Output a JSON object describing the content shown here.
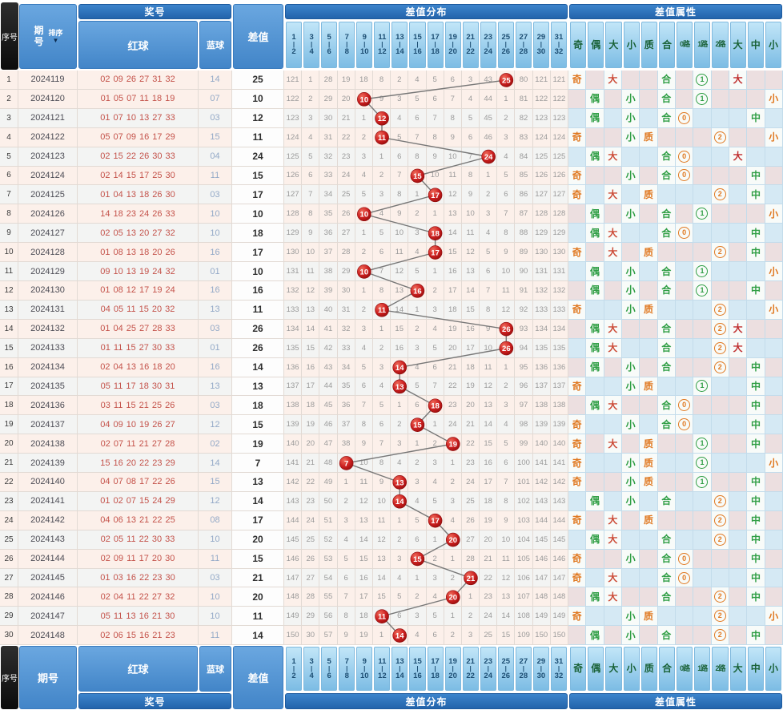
{
  "labels": {
    "xu_hao": "序号",
    "qi_hao": "期号",
    "pai_xu": "排序",
    "jiang_hao": "奖号",
    "hong_qiu": "红球",
    "lan_qiu": "蓝球",
    "cha_zhi": "差值",
    "cha_zhi_fen_bu": "差值分布",
    "cha_zhi_shu_xing": "差值属性"
  },
  "distribution_columns": [
    [
      "1",
      "2"
    ],
    [
      "3",
      "4"
    ],
    [
      "5",
      "6"
    ],
    [
      "7",
      "8"
    ],
    [
      "9",
      "10"
    ],
    [
      "11",
      "12"
    ],
    [
      "13",
      "14"
    ],
    [
      "15",
      "16"
    ],
    [
      "17",
      "18"
    ],
    [
      "19",
      "20"
    ],
    [
      "21",
      "22"
    ],
    [
      "23",
      "24"
    ],
    [
      "25",
      "26"
    ],
    [
      "27",
      "28"
    ],
    [
      "29",
      "30"
    ],
    [
      "31",
      "32"
    ]
  ],
  "attribute_columns": [
    "奇",
    "偶",
    "大",
    "小",
    "质",
    "合",
    "0路",
    "1路",
    "2路",
    "大",
    "中",
    "小"
  ],
  "colors": {
    "header_blue": "#4285c8",
    "group_bar_blue": "#2364ab",
    "column_cell_blue": "#9dd0ee",
    "hit_ball_red": "#c01818",
    "trend_line_gray": "#777777",
    "red_ball_text": "#c4524a",
    "blue_ball_text": "#93a9c7",
    "row_pink": "#fcf0ea",
    "row_light": "#f3f4f3",
    "attr": [
      "#e07820",
      "#2f9e44",
      "#cc4b37",
      "#2f9e44",
      "#e07820",
      "#2f9e44",
      "#e07820",
      "#2f9e44",
      "#e07820",
      "#c03030",
      "#2f9e44",
      "#e07820"
    ]
  },
  "chart_data": {
    "type": "table",
    "title": "差值分布走势",
    "x_buckets": [
      "1-2",
      "3-4",
      "5-6",
      "7-8",
      "9-10",
      "11-12",
      "13-14",
      "15-16",
      "17-18",
      "19-20",
      "21-22",
      "23-24",
      "25-26",
      "27-28",
      "29-30",
      "31-32"
    ],
    "rows": [
      {
        "no": 1,
        "period": "2024119",
        "reds": [
          "02",
          "09",
          "26",
          "27",
          "31",
          "32"
        ],
        "blue": "14",
        "diff": 25,
        "hit": 12,
        "miss": [
          121,
          1,
          28,
          19,
          18,
          8,
          2,
          4,
          5,
          6,
          3,
          43,
          25,
          80,
          121,
          121
        ],
        "marks": [
          0,
          2,
          5,
          7,
          9
        ]
      },
      {
        "no": 2,
        "period": "2024120",
        "reds": [
          "01",
          "05",
          "07",
          "11",
          "18",
          "19"
        ],
        "blue": "07",
        "diff": 10,
        "hit": 4,
        "miss": [
          122,
          2,
          29,
          20,
          10,
          9,
          3,
          5,
          6,
          7,
          4,
          44,
          1,
          81,
          122,
          122
        ],
        "marks": [
          1,
          3,
          5,
          7,
          11
        ]
      },
      {
        "no": 3,
        "period": "2024121",
        "reds": [
          "01",
          "07",
          "10",
          "13",
          "27",
          "33"
        ],
        "blue": "03",
        "diff": 12,
        "hit": 5,
        "miss": [
          123,
          3,
          30,
          21,
          1,
          12,
          4,
          6,
          7,
          8,
          5,
          45,
          2,
          82,
          123,
          123
        ],
        "marks": [
          1,
          3,
          5,
          6,
          10
        ]
      },
      {
        "no": 4,
        "period": "2024122",
        "reds": [
          "05",
          "07",
          "09",
          "16",
          "17",
          "29"
        ],
        "blue": "15",
        "diff": 11,
        "hit": 5,
        "miss": [
          124,
          4,
          31,
          22,
          2,
          11,
          5,
          7,
          8,
          9,
          6,
          46,
          3,
          83,
          124,
          124
        ],
        "marks": [
          0,
          3,
          4,
          8,
          11
        ]
      },
      {
        "no": 5,
        "period": "2024123",
        "reds": [
          "02",
          "15",
          "22",
          "26",
          "30",
          "33"
        ],
        "blue": "04",
        "diff": 24,
        "hit": 11,
        "miss": [
          125,
          5,
          32,
          23,
          3,
          1,
          6,
          8,
          9,
          10,
          7,
          24,
          4,
          84,
          125,
          125
        ],
        "marks": [
          1,
          2,
          5,
          6,
          9
        ]
      },
      {
        "no": 6,
        "period": "2024124",
        "reds": [
          "02",
          "14",
          "15",
          "17",
          "25",
          "30"
        ],
        "blue": "11",
        "diff": 15,
        "hit": 7,
        "miss": [
          126,
          6,
          33,
          24,
          4,
          2,
          7,
          15,
          10,
          11,
          8,
          1,
          5,
          85,
          126,
          126
        ],
        "marks": [
          0,
          3,
          5,
          6,
          10
        ]
      },
      {
        "no": 7,
        "period": "2024125",
        "reds": [
          "01",
          "04",
          "13",
          "18",
          "26",
          "30"
        ],
        "blue": "03",
        "diff": 17,
        "hit": 8,
        "miss": [
          127,
          7,
          34,
          25,
          5,
          3,
          8,
          1,
          17,
          12,
          9,
          2,
          6,
          86,
          127,
          127
        ],
        "marks": [
          0,
          2,
          4,
          8,
          10
        ]
      },
      {
        "no": 8,
        "period": "2024126",
        "reds": [
          "14",
          "18",
          "23",
          "24",
          "26",
          "33"
        ],
        "blue": "10",
        "diff": 10,
        "hit": 4,
        "miss": [
          128,
          8,
          35,
          26,
          10,
          4,
          9,
          2,
          1,
          13,
          10,
          3,
          7,
          87,
          128,
          128
        ],
        "marks": [
          1,
          3,
          5,
          7,
          11
        ]
      },
      {
        "no": 9,
        "period": "2024127",
        "reds": [
          "02",
          "05",
          "13",
          "20",
          "27",
          "32"
        ],
        "blue": "10",
        "diff": 18,
        "hit": 8,
        "miss": [
          129,
          9,
          36,
          27,
          1,
          5,
          10,
          3,
          18,
          14,
          11,
          4,
          8,
          88,
          129,
          129
        ],
        "marks": [
          1,
          2,
          5,
          6,
          10
        ]
      },
      {
        "no": 10,
        "period": "2024128",
        "reds": [
          "01",
          "08",
          "13",
          "18",
          "20",
          "26"
        ],
        "blue": "16",
        "diff": 17,
        "hit": 8,
        "miss": [
          130,
          10,
          37,
          28,
          2,
          6,
          11,
          4,
          17,
          15,
          12,
          5,
          9,
          89,
          130,
          130
        ],
        "marks": [
          0,
          2,
          4,
          8,
          10
        ]
      },
      {
        "no": 11,
        "period": "2024129",
        "reds": [
          "09",
          "10",
          "13",
          "19",
          "24",
          "32"
        ],
        "blue": "01",
        "diff": 10,
        "hit": 4,
        "miss": [
          131,
          11,
          38,
          29,
          10,
          7,
          12,
          5,
          1,
          16,
          13,
          6,
          10,
          90,
          131,
          131
        ],
        "marks": [
          1,
          3,
          5,
          7,
          11
        ]
      },
      {
        "no": 12,
        "period": "2024130",
        "reds": [
          "01",
          "08",
          "12",
          "17",
          "19",
          "24"
        ],
        "blue": "16",
        "diff": 16,
        "hit": 7,
        "miss": [
          132,
          12,
          39,
          30,
          1,
          8,
          13,
          16,
          2,
          17,
          14,
          7,
          11,
          91,
          132,
          132
        ],
        "marks": [
          1,
          3,
          5,
          7,
          10
        ]
      },
      {
        "no": 13,
        "period": "2024131",
        "reds": [
          "04",
          "05",
          "11",
          "15",
          "20",
          "32"
        ],
        "blue": "13",
        "diff": 11,
        "hit": 5,
        "miss": [
          133,
          13,
          40,
          31,
          2,
          11,
          14,
          1,
          3,
          18,
          15,
          8,
          12,
          92,
          133,
          133
        ],
        "marks": [
          0,
          3,
          4,
          8,
          11
        ]
      },
      {
        "no": 14,
        "period": "2024132",
        "reds": [
          "01",
          "04",
          "25",
          "27",
          "28",
          "33"
        ],
        "blue": "03",
        "diff": 26,
        "hit": 12,
        "miss": [
          134,
          14,
          41,
          32,
          3,
          1,
          15,
          2,
          4,
          19,
          16,
          9,
          26,
          93,
          134,
          134
        ],
        "marks": [
          1,
          2,
          5,
          8,
          9
        ]
      },
      {
        "no": 15,
        "period": "2024133",
        "reds": [
          "01",
          "11",
          "15",
          "27",
          "30",
          "33"
        ],
        "blue": "01",
        "diff": 26,
        "hit": 12,
        "miss": [
          135,
          15,
          42,
          33,
          4,
          2,
          16,
          3,
          5,
          20,
          17,
          10,
          26,
          94,
          135,
          135
        ],
        "marks": [
          1,
          2,
          5,
          8,
          9
        ]
      },
      {
        "no": 16,
        "period": "2024134",
        "reds": [
          "02",
          "04",
          "13",
          "16",
          "18",
          "20"
        ],
        "blue": "16",
        "diff": 14,
        "hit": 6,
        "miss": [
          136,
          16,
          43,
          34,
          5,
          3,
          14,
          4,
          6,
          21,
          18,
          11,
          1,
          95,
          136,
          136
        ],
        "marks": [
          1,
          3,
          5,
          8,
          10
        ]
      },
      {
        "no": 17,
        "period": "2024135",
        "reds": [
          "05",
          "11",
          "17",
          "18",
          "30",
          "31"
        ],
        "blue": "13",
        "diff": 13,
        "hit": 6,
        "miss": [
          137,
          17,
          44,
          35,
          6,
          4,
          13,
          5,
          7,
          22,
          19,
          12,
          2,
          96,
          137,
          137
        ],
        "marks": [
          0,
          3,
          4,
          7,
          10
        ]
      },
      {
        "no": 18,
        "period": "2024136",
        "reds": [
          "03",
          "11",
          "15",
          "21",
          "25",
          "26"
        ],
        "blue": "03",
        "diff": 18,
        "hit": 8,
        "miss": [
          138,
          18,
          45,
          36,
          7,
          5,
          1,
          6,
          18,
          23,
          20,
          13,
          3,
          97,
          138,
          138
        ],
        "marks": [
          1,
          2,
          5,
          6,
          10
        ]
      },
      {
        "no": 19,
        "period": "2024137",
        "reds": [
          "04",
          "09",
          "10",
          "19",
          "26",
          "27"
        ],
        "blue": "12",
        "diff": 15,
        "hit": 7,
        "miss": [
          139,
          19,
          46,
          37,
          8,
          6,
          2,
          15,
          1,
          24,
          21,
          14,
          4,
          98,
          139,
          139
        ],
        "marks": [
          0,
          3,
          5,
          6,
          10
        ]
      },
      {
        "no": 20,
        "period": "2024138",
        "reds": [
          "02",
          "07",
          "11",
          "21",
          "27",
          "28"
        ],
        "blue": "02",
        "diff": 19,
        "hit": 9,
        "miss": [
          140,
          20,
          47,
          38,
          9,
          7,
          3,
          1,
          2,
          19,
          22,
          15,
          5,
          99,
          140,
          140
        ],
        "marks": [
          0,
          2,
          4,
          7,
          10
        ]
      },
      {
        "no": 21,
        "period": "2024139",
        "reds": [
          "15",
          "16",
          "20",
          "22",
          "23",
          "29"
        ],
        "blue": "14",
        "diff": 7,
        "hit": 3,
        "miss": [
          141,
          21,
          48,
          7,
          10,
          8,
          4,
          2,
          3,
          1,
          23,
          16,
          6,
          100,
          141,
          141
        ],
        "marks": [
          0,
          3,
          4,
          7,
          11
        ]
      },
      {
        "no": 22,
        "period": "2024140",
        "reds": [
          "04",
          "07",
          "08",
          "17",
          "22",
          "26"
        ],
        "blue": "15",
        "diff": 13,
        "hit": 6,
        "miss": [
          142,
          22,
          49,
          1,
          11,
          9,
          13,
          3,
          4,
          2,
          24,
          17,
          7,
          101,
          142,
          142
        ],
        "marks": [
          0,
          3,
          4,
          7,
          10
        ]
      },
      {
        "no": 23,
        "period": "2024141",
        "reds": [
          "01",
          "02",
          "07",
          "15",
          "24",
          "29"
        ],
        "blue": "12",
        "diff": 14,
        "hit": 6,
        "miss": [
          143,
          23,
          50,
          2,
          12,
          10,
          14,
          4,
          5,
          3,
          25,
          18,
          8,
          102,
          143,
          143
        ],
        "marks": [
          1,
          3,
          5,
          8,
          10
        ]
      },
      {
        "no": 24,
        "period": "2024142",
        "reds": [
          "04",
          "06",
          "13",
          "21",
          "22",
          "25"
        ],
        "blue": "08",
        "diff": 17,
        "hit": 8,
        "miss": [
          144,
          24,
          51,
          3,
          13,
          11,
          1,
          5,
          17,
          4,
          26,
          19,
          9,
          103,
          144,
          144
        ],
        "marks": [
          0,
          2,
          4,
          8,
          10
        ]
      },
      {
        "no": 25,
        "period": "2024143",
        "reds": [
          "02",
          "05",
          "11",
          "22",
          "30",
          "33"
        ],
        "blue": "10",
        "diff": 20,
        "hit": 9,
        "miss": [
          145,
          25,
          52,
          4,
          14,
          12,
          2,
          6,
          1,
          20,
          27,
          20,
          10,
          104,
          145,
          145
        ],
        "marks": [
          1,
          2,
          5,
          8,
          10
        ]
      },
      {
        "no": 26,
        "period": "2024144",
        "reds": [
          "02",
          "09",
          "11",
          "17",
          "20",
          "30"
        ],
        "blue": "11",
        "diff": 15,
        "hit": 7,
        "miss": [
          146,
          26,
          53,
          5,
          15,
          13,
          3,
          15,
          2,
          1,
          28,
          21,
          11,
          105,
          146,
          146
        ],
        "marks": [
          0,
          3,
          5,
          6,
          10
        ]
      },
      {
        "no": 27,
        "period": "2024145",
        "reds": [
          "01",
          "03",
          "16",
          "22",
          "23",
          "30"
        ],
        "blue": "03",
        "diff": 21,
        "hit": 10,
        "miss": [
          147,
          27,
          54,
          6,
          16,
          14,
          4,
          1,
          3,
          2,
          21,
          22,
          12,
          106,
          147,
          147
        ],
        "marks": [
          0,
          2,
          5,
          6,
          10
        ]
      },
      {
        "no": 28,
        "period": "2024146",
        "reds": [
          "02",
          "04",
          "11",
          "22",
          "27",
          "32"
        ],
        "blue": "10",
        "diff": 20,
        "hit": 9,
        "miss": [
          148,
          28,
          55,
          7,
          17,
          15,
          5,
          2,
          4,
          20,
          1,
          23,
          13,
          107,
          148,
          148
        ],
        "marks": [
          1,
          2,
          5,
          8,
          10
        ]
      },
      {
        "no": 29,
        "period": "2024147",
        "reds": [
          "05",
          "11",
          "13",
          "16",
          "21",
          "30"
        ],
        "blue": "10",
        "diff": 11,
        "hit": 5,
        "miss": [
          149,
          29,
          56,
          8,
          18,
          11,
          6,
          3,
          5,
          1,
          2,
          24,
          14,
          108,
          149,
          149
        ],
        "marks": [
          0,
          3,
          4,
          8,
          11
        ]
      },
      {
        "no": 30,
        "period": "2024148",
        "reds": [
          "02",
          "06",
          "15",
          "16",
          "21",
          "23"
        ],
        "blue": "11",
        "diff": 14,
        "hit": 6,
        "miss": [
          150,
          30,
          57,
          9,
          19,
          1,
          14,
          4,
          6,
          2,
          3,
          25,
          15,
          109,
          150,
          150
        ],
        "marks": [
          1,
          3,
          5,
          8,
          10
        ]
      }
    ]
  }
}
